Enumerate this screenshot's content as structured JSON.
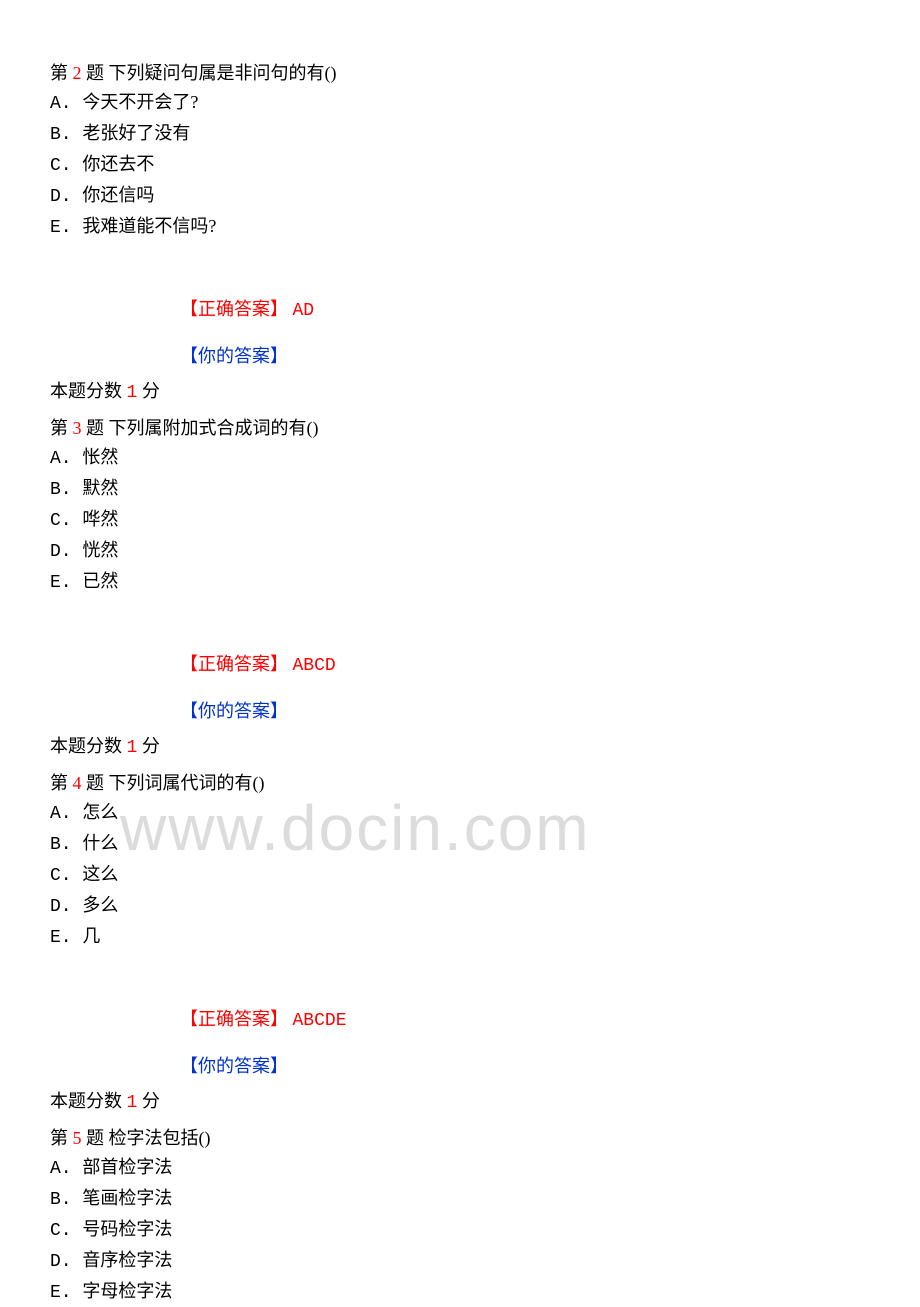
{
  "watermark": "www.docin.com",
  "labels": {
    "question_prefix": "第",
    "question_suffix": "题",
    "correct_answer": "【正确答案】",
    "your_answer": "【你的答案】",
    "score_prefix": "本题分数",
    "score_suffix": "分"
  },
  "colors": {
    "red": "#ff0000",
    "blue": "#0033cc",
    "black": "#000000",
    "watermark": "#dcdcdc",
    "background": "#ffffff"
  },
  "typography": {
    "body_fontsize": 18,
    "watermark_fontsize": 64,
    "body_font": "SimSun",
    "mono_font": "Courier New"
  },
  "questions": [
    {
      "number": "2",
      "stem": "下列疑问句属是非问句的有()",
      "options": {
        "A": "今天不开会了?",
        "B": "老张好了没有",
        "C": "你还去不",
        "D": "你还信吗",
        "E": "我难道能不信吗?"
      },
      "correct": "AD",
      "score": "1"
    },
    {
      "number": "3",
      "stem": "下列属附加式合成词的有()",
      "options": {
        "A": "怅然",
        "B": "默然",
        "C": "哗然",
        "D": "恍然",
        "E": "已然"
      },
      "correct": "ABCD",
      "score": "1"
    },
    {
      "number": "4",
      "stem": "下列词属代词的有()",
      "options": {
        "A": "怎么",
        "B": "什么",
        "C": "这么",
        "D": "多么",
        "E": "几"
      },
      "correct": "ABCDE",
      "score": "1"
    },
    {
      "number": "5",
      "stem": "检字法包括()",
      "options": {
        "A": "部首检字法",
        "B": "笔画检字法",
        "C": "号码检字法",
        "D": "音序检字法",
        "E": "字母检字法"
      },
      "correct": "",
      "score": ""
    }
  ]
}
